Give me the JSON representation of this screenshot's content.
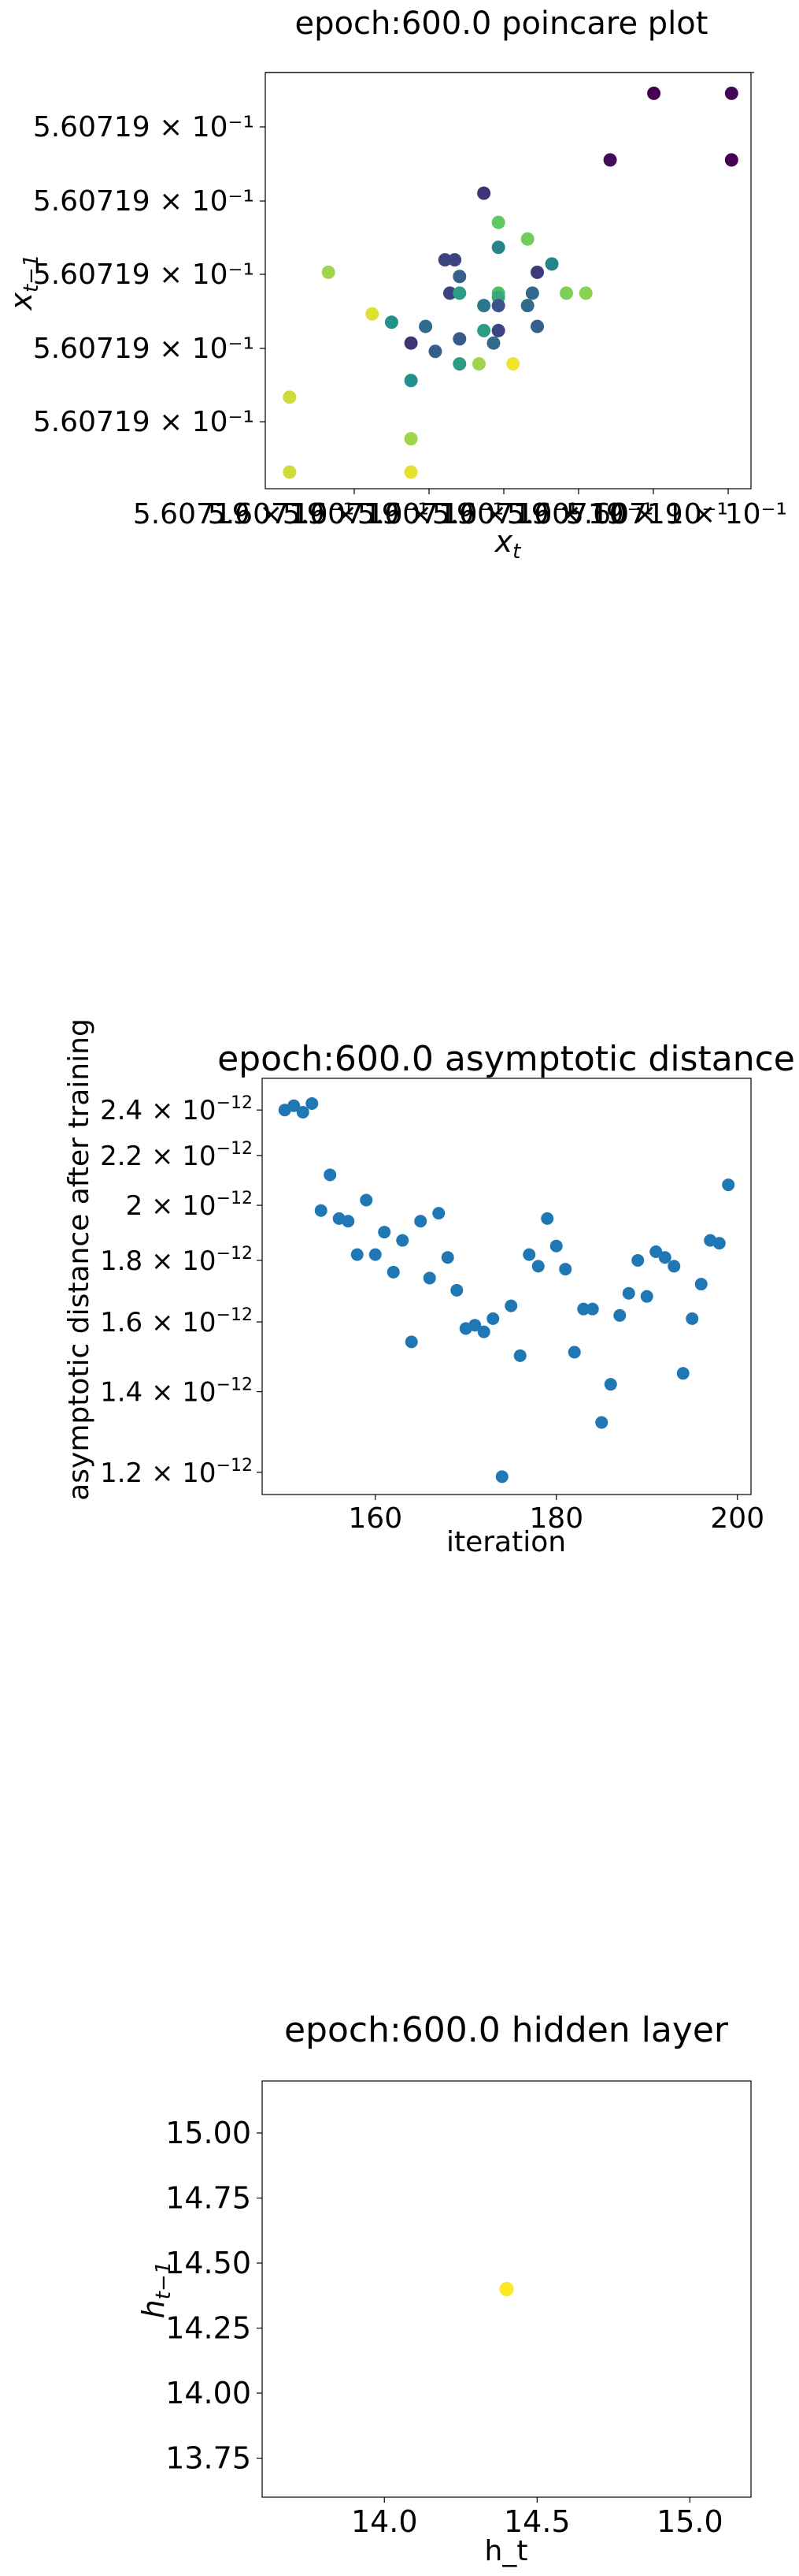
{
  "chart_data": [
    {
      "type": "scatter",
      "title": "epoch:600.0 poincare plot",
      "xlabel": "x_t",
      "ylabel": "x_{t-1}",
      "x_tick_labels": [
        "5.60719 × 10⁻¹",
        "5.60719 × 10⁻¹",
        "5.60719 × 10⁻¹",
        "5.60719 × 10⁻¹",
        "5.60719 × 10⁻¹",
        "5.60719 × 10⁻¹",
        "5.60719 × 10⁻¹"
      ],
      "y_tick_labels": [
        "5.60719 × 10⁻¹",
        "5.60719 × 10⁻¹",
        "5.60719 × 10⁻¹",
        "5.60719 × 10⁻¹",
        "5.60719 × 10⁻¹"
      ],
      "colormap": [
        "#440154",
        "#3b528b",
        "#21918c",
        "#5ec962",
        "#fde725"
      ],
      "note_values": "x and y are relative positions within the axes (0 = left/bottom, 1 = right/top); absolute values all display as 5.60719e-1; c is colormap position (0 = purple, 1 = yellow)",
      "points": [
        {
          "x": 0.8,
          "y": 0.95,
          "c": 0.0
        },
        {
          "x": 0.96,
          "y": 0.95,
          "c": 0.02
        },
        {
          "x": 0.71,
          "y": 0.79,
          "c": 0.03
        },
        {
          "x": 0.96,
          "y": 0.79,
          "c": 0.0
        },
        {
          "x": 0.45,
          "y": 0.71,
          "c": 0.15
        },
        {
          "x": 0.48,
          "y": 0.64,
          "c": 0.75
        },
        {
          "x": 0.54,
          "y": 0.6,
          "c": 0.78
        },
        {
          "x": 0.48,
          "y": 0.58,
          "c": 0.45
        },
        {
          "x": 0.37,
          "y": 0.55,
          "c": 0.2
        },
        {
          "x": 0.39,
          "y": 0.55,
          "c": 0.2
        },
        {
          "x": 0.59,
          "y": 0.54,
          "c": 0.45
        },
        {
          "x": 0.56,
          "y": 0.52,
          "c": 0.18
        },
        {
          "x": 0.13,
          "y": 0.52,
          "c": 0.85
        },
        {
          "x": 0.4,
          "y": 0.51,
          "c": 0.3
        },
        {
          "x": 0.38,
          "y": 0.47,
          "c": 0.2
        },
        {
          "x": 0.4,
          "y": 0.47,
          "c": 0.55
        },
        {
          "x": 0.48,
          "y": 0.47,
          "c": 0.7
        },
        {
          "x": 0.48,
          "y": 0.46,
          "c": 0.6
        },
        {
          "x": 0.55,
          "y": 0.47,
          "c": 0.35
        },
        {
          "x": 0.62,
          "y": 0.47,
          "c": 0.8
        },
        {
          "x": 0.66,
          "y": 0.47,
          "c": 0.82
        },
        {
          "x": 0.45,
          "y": 0.44,
          "c": 0.4
        },
        {
          "x": 0.48,
          "y": 0.44,
          "c": 0.25
        },
        {
          "x": 0.54,
          "y": 0.44,
          "c": 0.35
        },
        {
          "x": 0.22,
          "y": 0.42,
          "c": 0.95
        },
        {
          "x": 0.26,
          "y": 0.4,
          "c": 0.5
        },
        {
          "x": 0.33,
          "y": 0.39,
          "c": 0.35
        },
        {
          "x": 0.45,
          "y": 0.38,
          "c": 0.55
        },
        {
          "x": 0.48,
          "y": 0.38,
          "c": 0.2
        },
        {
          "x": 0.56,
          "y": 0.39,
          "c": 0.3
        },
        {
          "x": 0.3,
          "y": 0.35,
          "c": 0.15
        },
        {
          "x": 0.4,
          "y": 0.36,
          "c": 0.28
        },
        {
          "x": 0.47,
          "y": 0.35,
          "c": 0.35
        },
        {
          "x": 0.35,
          "y": 0.33,
          "c": 0.3
        },
        {
          "x": 0.4,
          "y": 0.3,
          "c": 0.55
        },
        {
          "x": 0.44,
          "y": 0.3,
          "c": 0.85
        },
        {
          "x": 0.51,
          "y": 0.3,
          "c": 0.98
        },
        {
          "x": 0.3,
          "y": 0.26,
          "c": 0.5
        },
        {
          "x": 0.05,
          "y": 0.22,
          "c": 0.92
        },
        {
          "x": 0.3,
          "y": 0.12,
          "c": 0.85
        },
        {
          "x": 0.05,
          "y": 0.04,
          "c": 0.92
        },
        {
          "x": 0.3,
          "y": 0.04,
          "c": 0.96
        }
      ]
    },
    {
      "type": "scatter",
      "title": "epoch:600.0 asymptotic distance",
      "xlabel": "iteration",
      "ylabel": "asymptotic distance after training",
      "yscale": "log",
      "xlim": [
        147.5,
        201.5
      ],
      "ylim": [
        1.15e-12,
        2.55e-12
      ],
      "x_ticks": [
        160,
        180,
        200
      ],
      "y_ticks": [
        {
          "value": 1.2e-12,
          "mantissa": "1.2 × 10",
          "exp": "−12"
        },
        {
          "value": 1.4e-12,
          "mantissa": "1.4 × 10",
          "exp": "−12"
        },
        {
          "value": 1.6e-12,
          "mantissa": "1.6 × 10",
          "exp": "−12"
        },
        {
          "value": 1.8e-12,
          "mantissa": "1.8 × 10",
          "exp": "−12"
        },
        {
          "value": 2e-12,
          "mantissa": "2 × 10",
          "exp": "−12"
        },
        {
          "value": 2.2e-12,
          "mantissa": "2.2 × 10",
          "exp": "−12"
        },
        {
          "value": 2.4e-12,
          "mantissa": "2.4 × 10",
          "exp": "−12"
        }
      ],
      "color": "#1f77b4",
      "x": [
        150,
        151,
        152,
        153,
        154,
        155,
        156,
        157,
        158,
        159,
        160,
        161,
        162,
        163,
        164,
        165,
        166,
        167,
        168,
        169,
        170,
        171,
        172,
        173,
        174,
        175,
        176,
        177,
        178,
        179,
        180,
        181,
        182,
        183,
        184,
        185,
        186,
        187,
        188,
        189,
        190,
        191,
        192,
        193,
        194,
        195,
        196,
        197,
        198,
        199
      ],
      "y": [
        2.4e-12,
        2.42e-12,
        2.39e-12,
        2.43e-12,
        1.98e-12,
        2.12e-12,
        1.95e-12,
        1.94e-12,
        1.82e-12,
        2.02e-12,
        1.82e-12,
        1.9e-12,
        1.76e-12,
        1.87e-12,
        1.54e-12,
        1.94e-12,
        1.74e-12,
        1.97e-12,
        1.81e-12,
        1.7e-12,
        1.58e-12,
        1.59e-12,
        1.57e-12,
        1.61e-12,
        1.19e-12,
        1.65e-12,
        1.5e-12,
        1.82e-12,
        1.78e-12,
        1.95e-12,
        1.85e-12,
        1.77e-12,
        1.51e-12,
        1.64e-12,
        1.64e-12,
        1.32e-12,
        1.42e-12,
        1.62e-12,
        1.69e-12,
        1.8e-12,
        1.68e-12,
        1.83e-12,
        1.81e-12,
        1.78e-12,
        1.45e-12,
        1.61e-12,
        1.72e-12,
        1.87e-12,
        1.86e-12,
        2.08e-12
      ]
    },
    {
      "type": "scatter",
      "title": "epoch:600.0 hidden layer",
      "xlabel": "h_t",
      "ylabel": "h_{t-1}",
      "xlim": [
        13.6,
        15.2
      ],
      "ylim": [
        13.6,
        15.2
      ],
      "x_ticks": [
        "14.0",
        "14.5",
        "15.0"
      ],
      "y_ticks": [
        "13.75",
        "14.00",
        "14.25",
        "14.50",
        "14.75",
        "15.00"
      ],
      "color": "#fde725",
      "points": [
        {
          "x": 14.4,
          "y": 14.4
        }
      ]
    }
  ]
}
